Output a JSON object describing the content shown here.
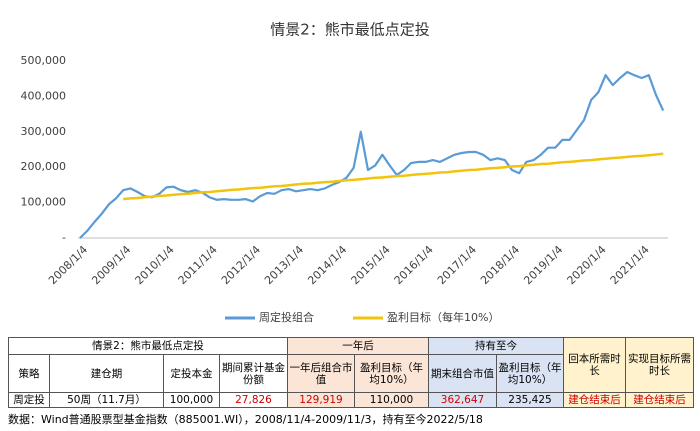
{
  "chart_data": {
    "type": "line",
    "title": "情景2：熊市最低点定投",
    "categories": [
      "2008/1/4",
      null,
      null,
      null,
      null,
      null,
      "2009/1/4",
      null,
      null,
      null,
      null,
      null,
      "2010/1/4",
      null,
      null,
      null,
      null,
      null,
      "2011/1/4",
      null,
      null,
      null,
      null,
      null,
      "2012/1/4",
      null,
      null,
      null,
      null,
      null,
      "2013/1/4",
      null,
      null,
      null,
      null,
      null,
      "2014/1/4",
      null,
      null,
      null,
      null,
      null,
      "2015/1/4",
      null,
      null,
      null,
      null,
      null,
      "2016/1/4",
      null,
      null,
      null,
      null,
      null,
      "2017/1/4",
      null,
      null,
      null,
      null,
      null,
      "2018/1/4",
      null,
      null,
      null,
      null,
      null,
      "2019/1/4",
      null,
      null,
      null,
      null,
      null,
      "2020/1/4",
      null,
      null,
      null,
      null,
      null,
      "2021/1/4",
      null,
      null,
      null
    ],
    "series": [
      {
        "name": "周定投组合",
        "color": "#5b9bd5",
        "values": [
          0,
          20000,
          45000,
          68000,
          95000,
          112000,
          135000,
          140000,
          130000,
          118000,
          115000,
          125000,
          143000,
          145000,
          135000,
          130000,
          135000,
          128000,
          115000,
          108000,
          110000,
          108000,
          108000,
          110000,
          103000,
          118000,
          127000,
          125000,
          135000,
          138000,
          132000,
          135000,
          138000,
          135000,
          140000,
          150000,
          158000,
          170000,
          198000,
          300000,
          192000,
          205000,
          235000,
          205000,
          178000,
          192000,
          212000,
          215000,
          215000,
          220000,
          215000,
          225000,
          235000,
          240000,
          243000,
          243000,
          235000,
          220000,
          225000,
          220000,
          192000,
          183000,
          215000,
          220000,
          235000,
          255000,
          255000,
          277000,
          277000,
          305000,
          333000,
          390000,
          412000,
          460000,
          432000,
          452000,
          469000,
          460000,
          452000,
          460000,
          404000,
          360000
        ]
      },
      {
        "name": "盈利目标（每年10%）",
        "color": "#f2c40f",
        "values": [
          null,
          null,
          null,
          null,
          null,
          null,
          110000,
          112000,
          113000,
          115000,
          117000,
          119000,
          120000,
          122000,
          124000,
          125000,
          127000,
          129000,
          130000,
          132000,
          134000,
          136000,
          137000,
          139000,
          141000,
          142000,
          144000,
          146000,
          147000,
          149000,
          151000,
          153000,
          154000,
          156000,
          158000,
          159000,
          161000,
          163000,
          164000,
          166000,
          168000,
          170000,
          171000,
          173000,
          175000,
          176000,
          178000,
          180000,
          181000,
          183000,
          185000,
          186000,
          188000,
          190000,
          192000,
          193000,
          195000,
          197000,
          198000,
          200000,
          202000,
          203000,
          205000,
          207000,
          209000,
          210000,
          212000,
          214000,
          215000,
          217000,
          219000,
          220000,
          222000,
          224000,
          226000,
          227000,
          229000,
          231000,
          232000,
          234000,
          236000,
          238000
        ]
      }
    ],
    "ylim": [
      0,
      500000
    ],
    "yticks": [
      {
        "value": 0,
        "label": "-"
      },
      {
        "value": 100000,
        "label": "100,000"
      },
      {
        "value": 200000,
        "label": "200,000"
      },
      {
        "value": 300000,
        "label": "300,000"
      },
      {
        "value": 400000,
        "label": "400,000"
      },
      {
        "value": 500000,
        "label": "500,000"
      }
    ],
    "grid": false,
    "legend": "bottom"
  },
  "table": {
    "scenario": "情景2：熊市最低点定投",
    "group_one_year": "一年后",
    "group_hold": "持有至今",
    "headers": [
      "策略",
      "建仓期",
      "定投本金",
      "期间累计基金份额",
      "一年后组合市值",
      "盈利目标（年均10%）",
      "期末组合市值",
      "盈利目标（年均10%）",
      "回本所需时长",
      "实现目标所需时长"
    ],
    "rows": [
      [
        "周定投",
        "50周（11.7月）",
        "100,000",
        "27,826",
        "129,919",
        "110,000",
        "362,647",
        "235,425",
        "建仓结束后",
        "建仓结束后"
      ]
    ]
  },
  "note": "数据：Wind普通股票型基金指数（885001.WI），2008/11/4-2009/11/3，持有至今2022/5/18"
}
